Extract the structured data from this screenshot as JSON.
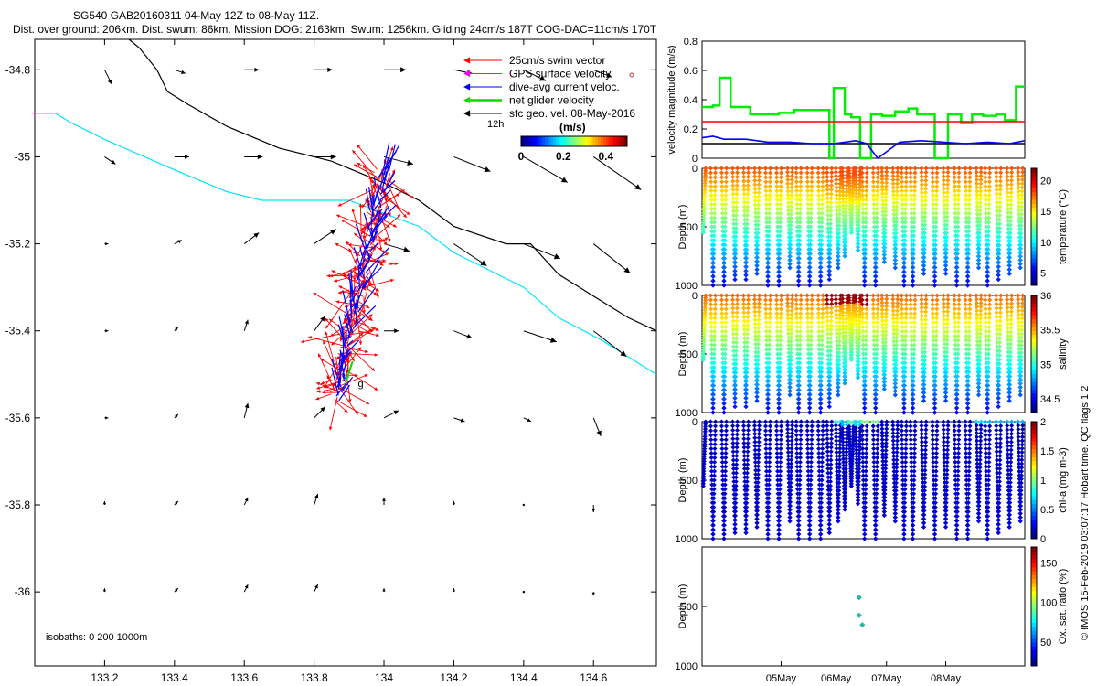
{
  "header": {
    "line1": "SG540 GAB20160311 04-May 12Z to 08-May 11Z.",
    "line2": "Dist. over ground: 206km. Dist. swum: 86km. Mission DOG: 2163km. Swum: 1256km. Gliding 24cm/s 187T COG-DAC=11cm/s 170T"
  },
  "side_note": "© IMOS 15-Feb-2019 03:07:17 Hobart time. QC flags 1  2",
  "chart_data": [
    {
      "id": "map",
      "type": "vector-map",
      "xticks": [
        "133.2",
        "133.4",
        "133.6",
        "133.8",
        "134",
        "134.2",
        "134.4",
        "134.6"
      ],
      "xtick_values": [
        133.2,
        133.4,
        133.6,
        133.8,
        134.0,
        134.2,
        134.4,
        134.6
      ],
      "yticks": [
        "-34.8",
        "-35",
        "-35.2",
        "-35.4",
        "-35.6",
        "-35.8",
        "-36"
      ],
      "ytick_values": [
        -34.8,
        -35.0,
        -35.2,
        -35.4,
        -35.6,
        -35.8,
        -36.0
      ],
      "xlim": [
        133.0,
        134.78
      ],
      "ylim": [
        -36.17,
        -34.73
      ],
      "legend": [
        {
          "label": "25cm/s swim vector",
          "color": "#ff0000"
        },
        {
          "label": "GPS surface velocity",
          "color": "#ff00ff"
        },
        {
          "label": "dive-avg current veloc.",
          "color": "#0000ff"
        },
        {
          "label": "net glider velocity",
          "color": "#00dd00"
        },
        {
          "label": "sfc geo. vel. 08-May-2016",
          "color": "#000000"
        }
      ],
      "scale_label": "12h",
      "colorbar_unit": "(m/s)",
      "colorbar_ticks": [
        "0",
        "0.2",
        "0.4"
      ],
      "colorbar_range": [
        0,
        0.5
      ],
      "isobaths_note": "isobaths: 0   200  1000m",
      "end_marker": "g",
      "isobath_0m": {
        "color": "#00e5ff",
        "lon": [
          133.0,
          133.06,
          133.1,
          133.2,
          133.4,
          133.55,
          133.65,
          133.8,
          133.9,
          134.0,
          134.1,
          134.2,
          134.3,
          134.4,
          134.5,
          134.62,
          134.7,
          134.78
        ],
        "lat": [
          -34.9,
          -34.9,
          -34.92,
          -34.96,
          -35.03,
          -35.08,
          -35.1,
          -35.1,
          -35.1,
          -35.13,
          -35.16,
          -35.22,
          -35.26,
          -35.3,
          -35.37,
          -35.42,
          -35.46,
          -35.5
        ]
      },
      "isobath_1000m": {
        "color": "#000000",
        "lon": [
          133.27,
          133.3,
          133.35,
          133.38,
          133.44,
          133.55,
          133.7,
          133.85,
          134.0,
          134.1,
          134.2,
          134.35,
          134.42,
          134.5,
          134.6,
          134.7,
          134.78
        ],
        "lat": [
          -34.73,
          -34.75,
          -34.8,
          -34.85,
          -34.88,
          -34.93,
          -34.98,
          -35.01,
          -35.06,
          -35.1,
          -35.16,
          -35.2,
          -35.2,
          -35.27,
          -35.32,
          -35.37,
          -35.4
        ]
      },
      "glider_track": {
        "lon_start": 133.86,
        "lat_start": -35.56,
        "lon_end": 134.0,
        "lat_end": -35.03
      },
      "sfc_geo_vel": {
        "lon": [
          133.2,
          133.4,
          133.6,
          133.8,
          134.0,
          134.2,
          134.4,
          134.6
        ],
        "lat": [
          -34.8,
          -35.0,
          -35.2,
          -35.4,
          -35.6,
          -35.8,
          -36.0
        ],
        "u": [
          [
            0.02,
            0.03,
            0.04,
            0.05,
            0.06,
            0.05,
            0.06,
            0.05
          ],
          [
            0.03,
            0.04,
            0.05,
            0.06,
            0.08,
            0.1,
            0.12,
            0.13
          ],
          [
            0.01,
            0.02,
            0.04,
            0.06,
            0.07,
            0.09,
            0.1,
            0.1
          ],
          [
            0.01,
            0.01,
            0.01,
            0.03,
            0.04,
            0.05,
            0.09,
            0.09
          ],
          [
            0.01,
            0.01,
            0.01,
            0.03,
            0.04,
            0.03,
            0.02,
            0.02
          ],
          [
            0.0,
            0.01,
            0.01,
            0.01,
            0.0,
            0.0,
            0.0,
            0.0
          ],
          [
            0.0,
            0.01,
            0.01,
            0.01,
            0.0,
            0.0,
            0.0,
            0.0
          ]
        ],
        "v": [
          [
            -0.04,
            -0.01,
            0.0,
            0.0,
            0.0,
            -0.01,
            -0.03,
            -0.02
          ],
          [
            -0.02,
            0.0,
            0.0,
            0.0,
            -0.02,
            -0.04,
            -0.07,
            -0.09
          ],
          [
            0.0,
            0.01,
            0.03,
            0.04,
            -0.02,
            -0.06,
            -0.04,
            -0.08
          ],
          [
            0.0,
            0.01,
            0.03,
            0.04,
            0.0,
            -0.02,
            -0.03,
            -0.07
          ],
          [
            0.0,
            0.01,
            0.04,
            0.03,
            0.02,
            -0.01,
            -0.01,
            -0.05
          ],
          [
            0.01,
            0.01,
            0.02,
            0.03,
            0.02,
            0.01,
            0.0,
            -0.02
          ],
          [
            0.01,
            0.01,
            0.02,
            0.02,
            0.01,
            0.01,
            0.0,
            -0.01
          ]
        ]
      }
    },
    {
      "id": "velocity",
      "type": "line",
      "ylabel": "velocity magnitude (m/s)",
      "ylim": [
        0,
        0.8
      ],
      "yticks": [
        "0",
        "0.2",
        "0.4",
        "0.6",
        "0.8"
      ],
      "series": [
        {
          "color": "#00ee00",
          "x": [
            0,
            5,
            5,
            8,
            8,
            13,
            13,
            22,
            22,
            35,
            35,
            42,
            42,
            58,
            58,
            60,
            60,
            65,
            65,
            68,
            68,
            72,
            72,
            77,
            77,
            82,
            82,
            88,
            88,
            94,
            94,
            98,
            98,
            106,
            106,
            112,
            112,
            118,
            118,
            123,
            123,
            128,
            128,
            134,
            134,
            138,
            138,
            143,
            143,
            147
          ],
          "y": [
            0.35,
            0.35,
            0.36,
            0.36,
            0.55,
            0.55,
            0.35,
            0.35,
            0.3,
            0.3,
            0.31,
            0.31,
            0.33,
            0.33,
            0,
            0,
            0.48,
            0.48,
            0.3,
            0.3,
            0.28,
            0.28,
            0,
            0,
            0.3,
            0.3,
            0.29,
            0.29,
            0.32,
            0.32,
            0.34,
            0.34,
            0.3,
            0.3,
            0,
            0,
            0.3,
            0.3,
            0.24,
            0.24,
            0.3,
            0.3,
            0.29,
            0.29,
            0.3,
            0.3,
            0.26,
            0.26,
            0.49,
            0.49
          ]
        },
        {
          "color": "#ff0000",
          "x": [
            0,
            147
          ],
          "y": [
            0.25,
            0.25
          ]
        },
        {
          "color": "#000000",
          "x": [
            0,
            147
          ],
          "y": [
            0.1,
            0.1
          ]
        },
        {
          "color": "#0000ff",
          "x": [
            0,
            5,
            10,
            20,
            30,
            40,
            50,
            60,
            65,
            70,
            75,
            80,
            90,
            100,
            110,
            120,
            130,
            140,
            147
          ],
          "y": [
            0.14,
            0.15,
            0.13,
            0.13,
            0.11,
            0.11,
            0.1,
            0.1,
            0.11,
            0.12,
            0.1,
            0.0,
            0.11,
            0.12,
            0.11,
            0.1,
            0.11,
            0.1,
            0.12
          ]
        }
      ]
    },
    {
      "id": "temperature",
      "type": "scatter",
      "ylabel": "Depth (m)",
      "cbar_label": "temperature (°C)",
      "cbar_ticks": [
        "5",
        "10",
        "15",
        "20"
      ],
      "cbar_values": [
        5,
        10,
        15,
        20
      ],
      "cbar_range": [
        3,
        22
      ],
      "yticks": [
        "0",
        "500",
        "1000"
      ],
      "ylim": [
        1000,
        0
      ],
      "variable": "temperature"
    },
    {
      "id": "salinity",
      "type": "scatter",
      "ylabel": "Depth (m)",
      "cbar_label": "salinity",
      "cbar_ticks": [
        "34.5",
        "35",
        "35.5",
        "36"
      ],
      "cbar_values": [
        34.5,
        35,
        35.5,
        36
      ],
      "cbar_range": [
        34.3,
        36.0
      ],
      "yticks": [
        "0",
        "500",
        "1000"
      ],
      "ylim": [
        1000,
        0
      ],
      "variable": "salinity"
    },
    {
      "id": "chla",
      "type": "scatter",
      "ylabel": "Depth (m)",
      "cbar_label": "chl-a (mg m-3)",
      "cbar_ticks": [
        "0",
        "0.5",
        "1",
        "1.5",
        "2"
      ],
      "cbar_values": [
        0,
        0.5,
        1,
        1.5,
        2
      ],
      "cbar_range": [
        0,
        2
      ],
      "yticks": [
        "0",
        "500",
        "1000"
      ],
      "ylim": [
        1000,
        0
      ],
      "variable": "chla"
    },
    {
      "id": "oxygen",
      "type": "scatter",
      "ylabel": "Depth (m)",
      "cbar_label": "Ox. sat. ratio (%)",
      "cbar_ticks": [
        "50",
        "100",
        "150"
      ],
      "cbar_values": [
        50,
        100,
        150
      ],
      "cbar_range": [
        20,
        170
      ],
      "yticks": [
        "500",
        "1000"
      ],
      "ylim": [
        1000,
        0
      ],
      "points": [
        {
          "depth": 425,
          "color": "#25b9a8"
        },
        {
          "depth": 575,
          "color": "#25b9a8"
        },
        {
          "depth": 655,
          "color": "#25b9a8"
        }
      ]
    }
  ],
  "time_axis": {
    "labels": [
      "05May",
      "06May",
      "07May",
      "08May"
    ],
    "range_hours": [
      0,
      147
    ],
    "label_hours": [
      36,
      61,
      84,
      111
    ],
    "dives": [
      {
        "t": 0.5,
        "d": 0.55
      },
      {
        "t": 5,
        "d": 1.0
      },
      {
        "t": 10,
        "d": 1.0
      },
      {
        "t": 15,
        "d": 0.95
      },
      {
        "t": 20,
        "d": 0.95
      },
      {
        "t": 25,
        "d": 0.9
      },
      {
        "t": 30,
        "d": 1.0
      },
      {
        "t": 35,
        "d": 1.0
      },
      {
        "t": 40,
        "d": 0.85
      },
      {
        "t": 44,
        "d": 1.0
      },
      {
        "t": 49,
        "d": 1.0
      },
      {
        "t": 54,
        "d": 1.0
      },
      {
        "t": 58,
        "d": 0.95
      },
      {
        "t": 62,
        "d": 0.85
      },
      {
        "t": 65,
        "d": 0.75
      },
      {
        "t": 68,
        "d": 0.55
      },
      {
        "t": 71,
        "d": 0.7
      },
      {
        "t": 74,
        "d": 1.0
      },
      {
        "t": 79,
        "d": 1.0
      },
      {
        "t": 83,
        "d": 0.8
      },
      {
        "t": 88,
        "d": 0.85
      },
      {
        "t": 92,
        "d": 1.0
      },
      {
        "t": 96,
        "d": 1.0
      },
      {
        "t": 101,
        "d": 0.9
      },
      {
        "t": 106,
        "d": 1.0
      },
      {
        "t": 111,
        "d": 0.9
      },
      {
        "t": 116,
        "d": 1.0
      },
      {
        "t": 121,
        "d": 1.0
      },
      {
        "t": 126,
        "d": 0.85
      },
      {
        "t": 130,
        "d": 1.0
      },
      {
        "t": 135,
        "d": 0.95
      },
      {
        "t": 140,
        "d": 0.9
      },
      {
        "t": 145,
        "d": 0.85
      }
    ]
  }
}
